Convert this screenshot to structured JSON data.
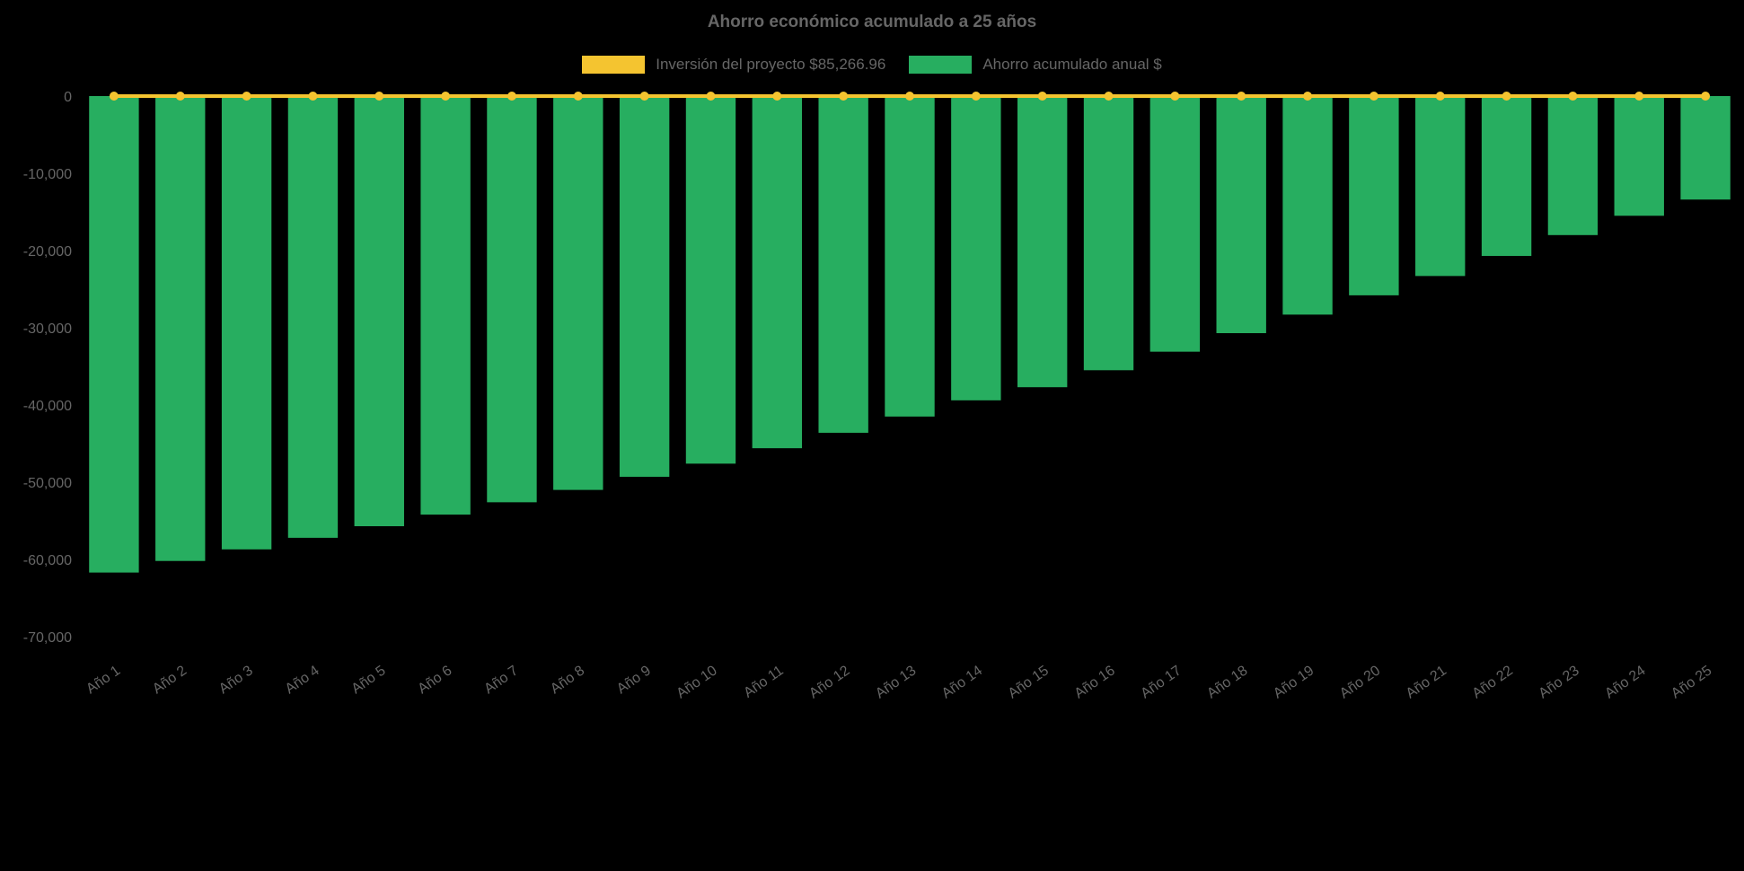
{
  "chart_data": {
    "type": "bar",
    "title": "Ahorro económico acumulado a 25 años",
    "categories": [
      "Año 1",
      "Año 2",
      "Año 3",
      "Año 4",
      "Año 5",
      "Año 6",
      "Año 7",
      "Año 8",
      "Año 9",
      "Año 10",
      "Año 11",
      "Año 12",
      "Año 13",
      "Año 14",
      "Año 15",
      "Año 16",
      "Año 17",
      "Año 18",
      "Año 19",
      "Año 20",
      "Año 21",
      "Año 22",
      "Año 23",
      "Año 24",
      "Año 25"
    ],
    "series": [
      {
        "name": "Inversión del proyecto $85,266.96",
        "type": "line",
        "color": "#F4C430",
        "values": [
          0,
          0,
          0,
          0,
          0,
          0,
          0,
          0,
          0,
          0,
          0,
          0,
          0,
          0,
          0,
          0,
          0,
          0,
          0,
          0,
          0,
          0,
          0,
          0,
          0
        ]
      },
      {
        "name": "Ahorro acumulado anual $",
        "type": "bar",
        "color": "#27AE60",
        "values": [
          -61700,
          -60200,
          -58700,
          -57200,
          -55700,
          -54200,
          -52600,
          -51000,
          -49300,
          -47600,
          -45600,
          -43600,
          -41500,
          -39400,
          -37700,
          -35500,
          -33100,
          -30700,
          -28300,
          -25800,
          -23300,
          -20700,
          -18000,
          -15500,
          -13400
        ]
      }
    ],
    "xlabel": "",
    "ylabel": "",
    "ylim": [
      -70000,
      0
    ],
    "ytick_step": 10000,
    "grid": false,
    "legend_position": "top",
    "background_color": "#000000",
    "text_color": "#666666"
  }
}
